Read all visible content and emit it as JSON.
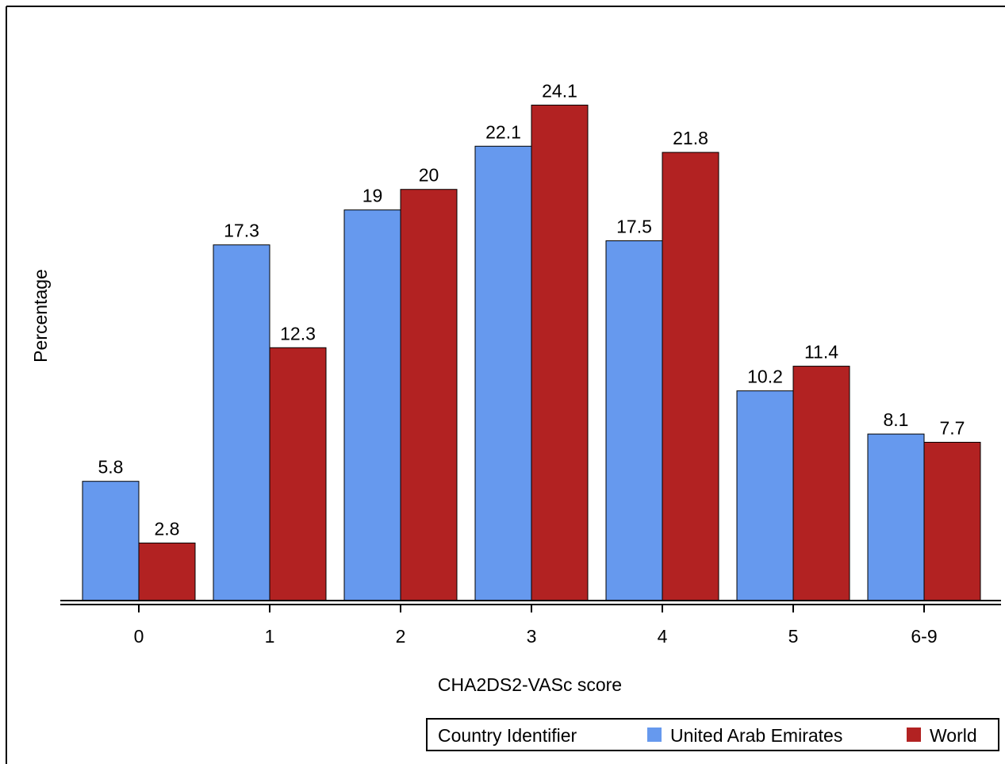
{
  "chart_data": {
    "type": "bar",
    "title": "",
    "xlabel": "CHA2DS2-VASc score",
    "ylabel": "Percentage",
    "categories": [
      "0",
      "1",
      "2",
      "3",
      "4",
      "5",
      "6-9"
    ],
    "series": [
      {
        "name": "United Arab Emirates",
        "values": [
          5.8,
          17.3,
          19,
          22.1,
          17.5,
          10.2,
          8.1
        ],
        "labels": [
          "5.8",
          "17.3",
          "19",
          "22.1",
          "17.5",
          "10.2",
          "8.1"
        ],
        "color": "#6699ee"
      },
      {
        "name": "World",
        "values": [
          2.8,
          12.3,
          20,
          24.1,
          21.8,
          11.4,
          7.7
        ],
        "labels": [
          "2.8",
          "12.3",
          "20",
          "24.1",
          "21.8",
          "11.4",
          "7.7"
        ],
        "color": "#b22222"
      }
    ],
    "ylim": [
      0,
      25.7
    ],
    "grid": false,
    "legend": {
      "title": "Country Identifier",
      "placement": "bottom-right"
    }
  }
}
